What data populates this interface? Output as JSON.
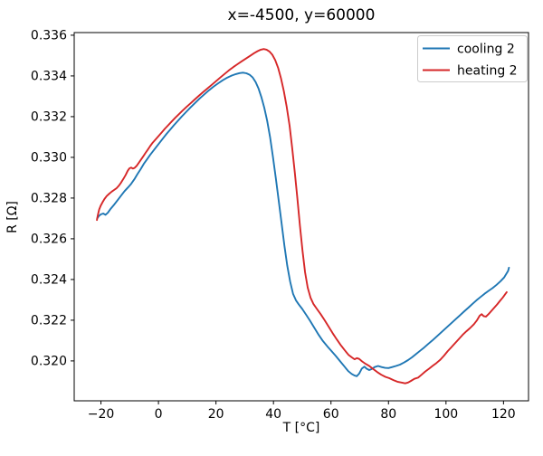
{
  "chart_data": {
    "type": "line",
    "title": "x=-4500, y=60000",
    "xlabel": "T [°C]",
    "ylabel": "R [Ω]",
    "xlim": [
      -29.3,
      128.7
    ],
    "ylim": [
      0.31804,
      0.33613
    ],
    "grid": false,
    "legend_position": "upper right",
    "legend_border_color": "#cccccc",
    "axis_color": "#000000",
    "xticks": [
      {
        "v": -20,
        "label": "−20"
      },
      {
        "v": 0,
        "label": "0"
      },
      {
        "v": 20,
        "label": "20"
      },
      {
        "v": 40,
        "label": "40"
      },
      {
        "v": 60,
        "label": "60"
      },
      {
        "v": 80,
        "label": "80"
      },
      {
        "v": 100,
        "label": "100"
      },
      {
        "v": 120,
        "label": "120"
      }
    ],
    "yticks": [
      {
        "v": 0.32,
        "label": "0.320"
      },
      {
        "v": 0.322,
        "label": "0.322"
      },
      {
        "v": 0.324,
        "label": "0.324"
      },
      {
        "v": 0.326,
        "label": "0.326"
      },
      {
        "v": 0.328,
        "label": "0.328"
      },
      {
        "v": 0.33,
        "label": "0.330"
      },
      {
        "v": 0.332,
        "label": "0.332"
      },
      {
        "v": 0.334,
        "label": "0.334"
      },
      {
        "v": 0.336,
        "label": "0.336"
      }
    ],
    "series": [
      {
        "name": "cooling 2",
        "color": "#1f77b4",
        "points": [
          [
            -21.3,
            0.327
          ],
          [
            -20.7,
            0.32712
          ],
          [
            -20.0,
            0.3272
          ],
          [
            -19.2,
            0.32724
          ],
          [
            -18.4,
            0.32718
          ],
          [
            -17.6,
            0.32728
          ],
          [
            -16.6,
            0.32748
          ],
          [
            -15.4,
            0.32768
          ],
          [
            -14.2,
            0.3279
          ],
          [
            -13.0,
            0.32812
          ],
          [
            -11.8,
            0.32834
          ],
          [
            -10.6,
            0.32852
          ],
          [
            -9.5,
            0.3287
          ],
          [
            -8.4,
            0.32892
          ],
          [
            -7.3,
            0.32918
          ],
          [
            -6.2,
            0.32942
          ],
          [
            -5.1,
            0.32968
          ],
          [
            -4.0,
            0.3299
          ],
          [
            -2.9,
            0.33012
          ],
          [
            -1.8,
            0.33032
          ],
          [
            -0.7,
            0.33052
          ],
          [
            0.4,
            0.33072
          ],
          [
            1.6,
            0.33094
          ],
          [
            2.8,
            0.33115
          ],
          [
            4.1,
            0.33136
          ],
          [
            5.4,
            0.33158
          ],
          [
            6.8,
            0.3318
          ],
          [
            8.2,
            0.33202
          ],
          [
            9.7,
            0.33224
          ],
          [
            11.2,
            0.33246
          ],
          [
            12.8,
            0.33268
          ],
          [
            14.4,
            0.3329
          ],
          [
            16.0,
            0.3331
          ],
          [
            17.6,
            0.3333
          ],
          [
            19.2,
            0.33348
          ],
          [
            20.8,
            0.33364
          ],
          [
            22.4,
            0.33379
          ],
          [
            24.0,
            0.33392
          ],
          [
            25.5,
            0.33402
          ],
          [
            26.9,
            0.33409
          ],
          [
            28.2,
            0.33414
          ],
          [
            29.4,
            0.33416
          ],
          [
            30.6,
            0.33413
          ],
          [
            31.7,
            0.33406
          ],
          [
            32.8,
            0.33392
          ],
          [
            33.8,
            0.3337
          ],
          [
            34.8,
            0.33338
          ],
          [
            35.8,
            0.33296
          ],
          [
            36.8,
            0.33244
          ],
          [
            37.8,
            0.3318
          ],
          [
            38.8,
            0.331
          ],
          [
            39.8,
            0.33005
          ],
          [
            40.8,
            0.329
          ],
          [
            41.8,
            0.3279
          ],
          [
            42.8,
            0.32678
          ],
          [
            43.8,
            0.32565
          ],
          [
            44.8,
            0.32468
          ],
          [
            45.8,
            0.3239
          ],
          [
            46.8,
            0.3233
          ],
          [
            47.8,
            0.32298
          ],
          [
            48.8,
            0.32278
          ],
          [
            50.0,
            0.32255
          ],
          [
            51.3,
            0.32228
          ],
          [
            52.7,
            0.32198
          ],
          [
            54.2,
            0.32163
          ],
          [
            55.7,
            0.32128
          ],
          [
            57.2,
            0.32098
          ],
          [
            58.7,
            0.32072
          ],
          [
            60.2,
            0.32048
          ],
          [
            61.7,
            0.32024
          ],
          [
            63.2,
            0.31998
          ],
          [
            64.7,
            0.31972
          ],
          [
            66.0,
            0.3195
          ],
          [
            67.2,
            0.31936
          ],
          [
            68.2,
            0.31928
          ],
          [
            69.0,
            0.31925
          ],
          [
            69.8,
            0.31938
          ],
          [
            70.7,
            0.31962
          ],
          [
            71.6,
            0.31972
          ],
          [
            72.4,
            0.31962
          ],
          [
            73.3,
            0.31955
          ],
          [
            74.2,
            0.3196
          ],
          [
            75.2,
            0.3197
          ],
          [
            76.4,
            0.31975
          ],
          [
            77.6,
            0.3197
          ],
          [
            78.8,
            0.31966
          ],
          [
            80.0,
            0.31965
          ],
          [
            81.3,
            0.3197
          ],
          [
            82.6,
            0.31975
          ],
          [
            84.0,
            0.31982
          ],
          [
            85.4,
            0.31992
          ],
          [
            86.8,
            0.32004
          ],
          [
            88.2,
            0.32018
          ],
          [
            89.6,
            0.32034
          ],
          [
            91.0,
            0.3205
          ],
          [
            92.4,
            0.32066
          ],
          [
            93.8,
            0.32083
          ],
          [
            95.2,
            0.321
          ],
          [
            96.6,
            0.32118
          ],
          [
            98.0,
            0.32136
          ],
          [
            99.4,
            0.32154
          ],
          [
            100.8,
            0.32172
          ],
          [
            102.2,
            0.3219
          ],
          [
            103.6,
            0.32208
          ],
          [
            105.0,
            0.32226
          ],
          [
            106.4,
            0.32244
          ],
          [
            107.8,
            0.32262
          ],
          [
            109.2,
            0.3228
          ],
          [
            110.6,
            0.32298
          ],
          [
            112.0,
            0.32314
          ],
          [
            113.4,
            0.3233
          ],
          [
            114.8,
            0.32344
          ],
          [
            116.2,
            0.32358
          ],
          [
            117.6,
            0.32374
          ],
          [
            119.0,
            0.32392
          ],
          [
            120.2,
            0.3241
          ],
          [
            121.0,
            0.32428
          ],
          [
            121.6,
            0.32442
          ],
          [
            121.9,
            0.32458
          ]
        ]
      },
      {
        "name": "heating 2",
        "color": "#d62728",
        "points": [
          [
            -21.4,
            0.32692
          ],
          [
            -21.3,
            0.327
          ],
          [
            -21.0,
            0.32722
          ],
          [
            -20.6,
            0.32744
          ],
          [
            -20.1,
            0.32762
          ],
          [
            -19.5,
            0.32778
          ],
          [
            -18.8,
            0.32795
          ],
          [
            -18.0,
            0.3281
          ],
          [
            -17.1,
            0.32822
          ],
          [
            -16.2,
            0.32832
          ],
          [
            -15.4,
            0.3284
          ],
          [
            -14.6,
            0.32848
          ],
          [
            -13.8,
            0.3286
          ],
          [
            -13.0,
            0.32876
          ],
          [
            -12.2,
            0.32894
          ],
          [
            -11.4,
            0.32914
          ],
          [
            -10.7,
            0.32934
          ],
          [
            -10.1,
            0.32946
          ],
          [
            -9.5,
            0.3295
          ],
          [
            -8.9,
            0.32945
          ],
          [
            -8.3,
            0.32948
          ],
          [
            -7.6,
            0.32958
          ],
          [
            -6.9,
            0.32972
          ],
          [
            -6.1,
            0.32988
          ],
          [
            -5.3,
            0.33005
          ],
          [
            -4.5,
            0.33022
          ],
          [
            -3.7,
            0.33038
          ],
          [
            -2.9,
            0.33055
          ],
          [
            -2.0,
            0.33072
          ],
          [
            -1.0,
            0.33088
          ],
          [
            0.0,
            0.33104
          ],
          [
            1.1,
            0.33122
          ],
          [
            2.2,
            0.3314
          ],
          [
            3.4,
            0.33158
          ],
          [
            4.6,
            0.33176
          ],
          [
            5.8,
            0.33194
          ],
          [
            7.1,
            0.33212
          ],
          [
            8.4,
            0.3323
          ],
          [
            9.8,
            0.33248
          ],
          [
            11.2,
            0.33266
          ],
          [
            12.6,
            0.33284
          ],
          [
            14.0,
            0.33302
          ],
          [
            15.5,
            0.3332
          ],
          [
            17.0,
            0.33338
          ],
          [
            18.5,
            0.33356
          ],
          [
            20.0,
            0.33374
          ],
          [
            21.5,
            0.33392
          ],
          [
            23.0,
            0.3341
          ],
          [
            24.5,
            0.33427
          ],
          [
            26.0,
            0.33443
          ],
          [
            27.5,
            0.33458
          ],
          [
            29.0,
            0.33472
          ],
          [
            30.5,
            0.33486
          ],
          [
            32.0,
            0.335
          ],
          [
            33.3,
            0.33512
          ],
          [
            34.5,
            0.33522
          ],
          [
            35.6,
            0.33529
          ],
          [
            36.6,
            0.33532
          ],
          [
            37.6,
            0.33529
          ],
          [
            38.6,
            0.3352
          ],
          [
            39.6,
            0.33504
          ],
          [
            40.6,
            0.33478
          ],
          [
            41.6,
            0.3344
          ],
          [
            42.6,
            0.3339
          ],
          [
            43.6,
            0.33326
          ],
          [
            44.6,
            0.33248
          ],
          [
            45.6,
            0.33155
          ],
          [
            46.5,
            0.33048
          ],
          [
            47.4,
            0.32928
          ],
          [
            48.3,
            0.32798
          ],
          [
            49.2,
            0.32665
          ],
          [
            50.1,
            0.3254
          ],
          [
            51.0,
            0.32435
          ],
          [
            51.9,
            0.3236
          ],
          [
            52.9,
            0.3231
          ],
          [
            53.9,
            0.3228
          ],
          [
            55.1,
            0.32255
          ],
          [
            56.4,
            0.3223
          ],
          [
            57.8,
            0.322
          ],
          [
            59.2,
            0.32168
          ],
          [
            60.6,
            0.32136
          ],
          [
            62.0,
            0.32106
          ],
          [
            63.4,
            0.32078
          ],
          [
            64.8,
            0.32052
          ],
          [
            66.1,
            0.3203
          ],
          [
            67.2,
            0.32018
          ],
          [
            68.2,
            0.32008
          ],
          [
            69.0,
            0.32014
          ],
          [
            69.8,
            0.3201
          ],
          [
            70.8,
            0.31998
          ],
          [
            72.0,
            0.31986
          ],
          [
            73.3,
            0.31975
          ],
          [
            74.7,
            0.3196
          ],
          [
            76.1,
            0.31945
          ],
          [
            77.5,
            0.31932
          ],
          [
            78.9,
            0.31922
          ],
          [
            80.3,
            0.31915
          ],
          [
            81.7,
            0.31906
          ],
          [
            83.1,
            0.31898
          ],
          [
            84.5,
            0.31894
          ],
          [
            85.8,
            0.3189
          ],
          [
            86.8,
            0.31894
          ],
          [
            87.8,
            0.31902
          ],
          [
            89.0,
            0.31912
          ],
          [
            90.3,
            0.31918
          ],
          [
            91.5,
            0.31932
          ],
          [
            92.8,
            0.31948
          ],
          [
            94.1,
            0.31962
          ],
          [
            95.4,
            0.31976
          ],
          [
            96.7,
            0.3199
          ],
          [
            98.0,
            0.32006
          ],
          [
            99.3,
            0.32026
          ],
          [
            100.6,
            0.32048
          ],
          [
            101.9,
            0.32068
          ],
          [
            103.2,
            0.32088
          ],
          [
            104.5,
            0.32108
          ],
          [
            105.8,
            0.32128
          ],
          [
            107.1,
            0.32146
          ],
          [
            108.4,
            0.32162
          ],
          [
            109.7,
            0.3218
          ],
          [
            110.8,
            0.322
          ],
          [
            111.7,
            0.32222
          ],
          [
            112.4,
            0.3223
          ],
          [
            113.1,
            0.3222
          ],
          [
            113.9,
            0.32218
          ],
          [
            114.8,
            0.3223
          ],
          [
            115.8,
            0.32246
          ],
          [
            116.8,
            0.32262
          ],
          [
            117.8,
            0.32278
          ],
          [
            118.8,
            0.32295
          ],
          [
            119.8,
            0.32312
          ],
          [
            120.6,
            0.32328
          ],
          [
            121.1,
            0.32338
          ]
        ]
      }
    ]
  }
}
